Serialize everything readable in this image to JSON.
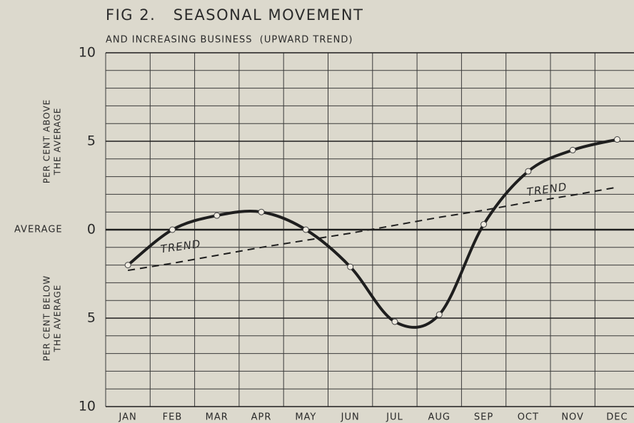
{
  "chart_data": {
    "type": "line",
    "title": "FIG 2.   SEASONAL MOVEMENT",
    "subtitle": "AND INCREASING BUSINESS  (UPWARD TREND)",
    "ylabel_above": [
      "PER CENT ABOVE",
      "THE AVERAGE"
    ],
    "ylabel_below": [
      "PER CENT BELOW",
      "THE AVERAGE"
    ],
    "baseline_label": "AVERAGE",
    "annotations": [
      "TREND",
      "TREND"
    ],
    "categories": [
      "JAN",
      "FEB",
      "MAR",
      "APR",
      "MAY",
      "JUN",
      "JUL",
      "AUG",
      "SEP",
      "OCT",
      "NOV",
      "DEC"
    ],
    "series": [
      {
        "name": "Seasonal movement",
        "color": "#1e1e1e",
        "values": [
          -2,
          0,
          0.8,
          1.0,
          0,
          -2.1,
          -5.2,
          -4.8,
          0.3,
          3.3,
          4.5,
          5.1
        ]
      },
      {
        "name": "TREND",
        "color": "#1e1e1e",
        "dashed": true,
        "values": [
          -2.3,
          -1.9,
          -1.45,
          -1.0,
          -0.6,
          -0.2,
          0.25,
          0.7,
          1.1,
          1.55,
          1.95,
          2.4
        ]
      }
    ],
    "ylim": [
      -10,
      10
    ],
    "yticks": [
      {
        "value": -10,
        "label": "10"
      },
      {
        "value": -5,
        "label": "5"
      },
      0,
      5,
      10
    ],
    "grid": true
  }
}
